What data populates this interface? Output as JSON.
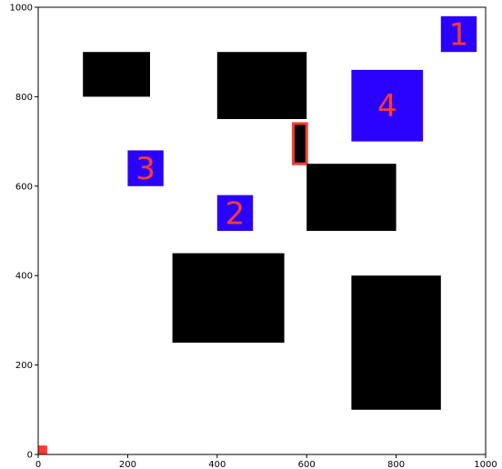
{
  "chart_data": {
    "type": "scatter",
    "title": "",
    "xlabel": "",
    "ylabel": "",
    "xlim": [
      0,
      1000
    ],
    "ylim": [
      0,
      1000
    ],
    "x_ticks": [
      0,
      200,
      400,
      600,
      800,
      1000
    ],
    "y_ticks": [
      0,
      200,
      400,
      600,
      800,
      1000
    ],
    "x_tick_labels": [
      "0",
      "200",
      "400",
      "600",
      "800",
      "1000"
    ],
    "y_tick_labels": [
      "0",
      "200",
      "400",
      "600",
      "800",
      "1000"
    ],
    "grid": false,
    "colors": {
      "obstacle": "#000000",
      "goal": "#2a00ff",
      "goal_label": "#ff3b30",
      "agent": "#ff3b30",
      "frame": "#000000",
      "background": "#ffffff"
    },
    "obstacles": [
      {
        "x": [
          100,
          250
        ],
        "y": [
          800,
          900
        ]
      },
      {
        "x": [
          400,
          600
        ],
        "y": [
          750,
          900
        ]
      },
      {
        "x": [
          570,
          600
        ],
        "y": [
          650,
          740
        ]
      },
      {
        "x": [
          600,
          800
        ],
        "y": [
          500,
          650
        ]
      },
      {
        "x": [
          300,
          550
        ],
        "y": [
          250,
          450
        ]
      },
      {
        "x": [
          700,
          900
        ],
        "y": [
          100,
          400
        ]
      }
    ],
    "goals": [
      {
        "label": "1",
        "x": [
          900,
          980
        ],
        "y": [
          900,
          980
        ]
      },
      {
        "label": "2",
        "x": [
          400,
          480
        ],
        "y": [
          500,
          580
        ]
      },
      {
        "label": "3",
        "x": [
          200,
          280
        ],
        "y": [
          600,
          680
        ]
      },
      {
        "label": "4",
        "x": [
          700,
          860
        ],
        "y": [
          700,
          860
        ]
      }
    ],
    "highlighted_obstacle_index": 2,
    "agent": {
      "x": [
        0,
        20
      ],
      "y": [
        0,
        20
      ]
    }
  }
}
